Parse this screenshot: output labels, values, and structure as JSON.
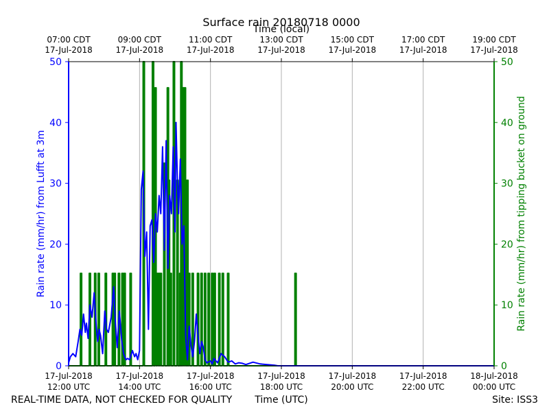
{
  "chart_data": {
    "type": "line",
    "title": "Surface rain 20180718 0000",
    "top_axis_label": "Time (local)",
    "xlabel": "Time (UTC)",
    "ylabel_left": "Rain rate (mm/hr) from Lufft at 3m",
    "ylabel_right": "Rain rate (mm/hr) from tipping bucket on ground",
    "footer_left": "REAL-TIME DATA, NOT CHECKED FOR QUALITY",
    "footer_right": "Site: ISS3",
    "x_range_hours_utc": [
      12,
      24
    ],
    "ylim_left": [
      0,
      50
    ],
    "ylim_right": [
      0,
      50
    ],
    "y_ticks": [
      "0",
      "10",
      "20",
      "30",
      "40",
      "50"
    ],
    "bottom_ticks": [
      {
        "hour": 12,
        "line1": "17-Jul-2018",
        "line2": "12:00 UTC"
      },
      {
        "hour": 14,
        "line1": "17-Jul-2018",
        "line2": "14:00 UTC"
      },
      {
        "hour": 16,
        "line1": "17-Jul-2018",
        "line2": "16:00 UTC"
      },
      {
        "hour": 18,
        "line1": "17-Jul-2018",
        "line2": "18:00 UTC"
      },
      {
        "hour": 20,
        "line1": "17-Jul-2018",
        "line2": "20:00 UTC"
      },
      {
        "hour": 22,
        "line1": "17-Jul-2018",
        "line2": "22:00 UTC"
      },
      {
        "hour": 24,
        "line1": "18-Jul-2018",
        "line2": "00:00 UTC"
      }
    ],
    "top_ticks": [
      {
        "hour": 12,
        "line1": "07:00 CDT",
        "line2": "17-Jul-2018"
      },
      {
        "hour": 14,
        "line1": "09:00 CDT",
        "line2": "17-Jul-2018"
      },
      {
        "hour": 16,
        "line1": "11:00 CDT",
        "line2": "17-Jul-2018"
      },
      {
        "hour": 18,
        "line1": "13:00 CDT",
        "line2": "17-Jul-2018"
      },
      {
        "hour": 20,
        "line1": "15:00 CDT",
        "line2": "17-Jul-2018"
      },
      {
        "hour": 22,
        "line1": "17:00 CDT",
        "line2": "17-Jul-2018"
      },
      {
        "hour": 24,
        "line1": "19:00 CDT",
        "line2": "17-Jul-2018"
      }
    ],
    "grid": "vertical",
    "series": [
      {
        "name": "Lufft at 3m",
        "axis": "left",
        "color": "#0000ff",
        "x": [
          12.0,
          12.05,
          12.12,
          12.2,
          12.27,
          12.32,
          12.37,
          12.42,
          12.47,
          12.5,
          12.55,
          12.6,
          12.66,
          12.72,
          12.78,
          12.82,
          12.86,
          12.9,
          12.96,
          13.02,
          13.07,
          13.12,
          13.2,
          13.27,
          13.32,
          13.37,
          13.43,
          13.5,
          13.55,
          13.58,
          13.62,
          13.66,
          13.72,
          13.8,
          13.86,
          13.9,
          13.95,
          14.0,
          14.05,
          14.1,
          14.15,
          14.2,
          14.25,
          14.3,
          14.35,
          14.4,
          14.45,
          14.5,
          14.55,
          14.6,
          14.65,
          14.7,
          14.75,
          14.8,
          14.85,
          14.9,
          14.95,
          15.0,
          15.03,
          15.07,
          15.1,
          15.15,
          15.2,
          15.25,
          15.3,
          15.35,
          15.4,
          15.45,
          15.5,
          15.55,
          15.6,
          15.65,
          15.7,
          15.75,
          15.8,
          15.85,
          15.9,
          16.0,
          16.05,
          16.1,
          16.2,
          16.3,
          16.4,
          16.5,
          16.6,
          16.7,
          16.8,
          16.9,
          17.0,
          17.2,
          17.4,
          17.6,
          17.8,
          17.9,
          18.0,
          19.0,
          20.0,
          22.0,
          24.0
        ],
        "values": [
          0.5,
          1.5,
          2.0,
          1.5,
          4.0,
          6.0,
          5.0,
          8.5,
          5.5,
          7.0,
          4.5,
          10.0,
          8.0,
          12.0,
          6.5,
          4.0,
          6.0,
          5.0,
          2.0,
          9.0,
          6.0,
          5.5,
          8.0,
          13.0,
          7.0,
          3.0,
          9.0,
          4.0,
          2.0,
          1.5,
          1.0,
          1.2,
          1.0,
          2.5,
          1.5,
          2.0,
          1.0,
          2.5,
          29.0,
          32.0,
          18.0,
          22.0,
          6.0,
          23.0,
          24.0,
          17.0,
          25.0,
          22.0,
          28.0,
          25.0,
          36.0,
          19.0,
          37.0,
          16.0,
          28.0,
          25.0,
          36.0,
          22.0,
          40.0,
          30.0,
          25.0,
          34.0,
          20.0,
          23.0,
          5.0,
          1.0,
          6.5,
          3.5,
          1.5,
          4.0,
          8.5,
          5.0,
          2.0,
          4.0,
          3.0,
          1.0,
          0.5,
          0.8,
          0.3,
          1.2,
          0.5,
          2.0,
          1.5,
          0.6,
          0.8,
          0.3,
          0.5,
          0.4,
          0.2,
          0.6,
          0.3,
          0.2,
          0.1,
          0.0,
          0.0,
          0.0,
          0.0,
          0.0,
          0.0
        ]
      },
      {
        "name": "Tipping bucket on ground",
        "axis": "right",
        "color": "#008000",
        "x": [
          12.35,
          12.6,
          12.75,
          12.85,
          13.05,
          13.25,
          13.3,
          13.42,
          13.52,
          13.58,
          13.75,
          14.12,
          14.38,
          14.45,
          14.5,
          14.55,
          14.6,
          14.7,
          14.8,
          14.83,
          14.88,
          14.97,
          15.07,
          15.15,
          15.18,
          15.23,
          15.28,
          15.32,
          15.35,
          15.4,
          15.5,
          15.65,
          15.75,
          15.85,
          15.95,
          16.05,
          16.12,
          16.25,
          16.35,
          16.5,
          18.4
        ],
        "values": [
          15.2,
          15.2,
          15.2,
          15.2,
          15.2,
          15.2,
          15.2,
          15.2,
          15.2,
          15.2,
          15.2,
          50.0,
          50.0,
          45.7,
          15.2,
          15.2,
          15.2,
          33.3,
          45.7,
          30.5,
          15.2,
          50.0,
          30.5,
          15.2,
          50.0,
          45.7,
          45.7,
          15.2,
          30.5,
          15.2,
          15.2,
          15.2,
          15.2,
          15.2,
          15.2,
          15.2,
          15.2,
          15.2,
          15.2,
          15.2,
          15.2
        ]
      }
    ]
  }
}
